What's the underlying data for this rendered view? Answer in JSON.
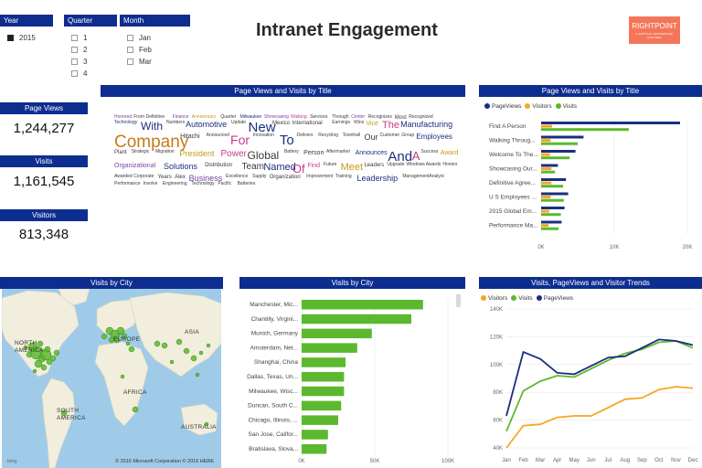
{
  "report": {
    "title": "Intranet Engagement",
    "logo_text": "RIGHTPOINT",
    "logo_sub": "A CRITICAL ENTERPRISE PARTNER"
  },
  "colors": {
    "header": "#0d2d8f",
    "pageviews": "#1a2e7c",
    "visitors": "#f5a623",
    "visits": "#5cb82e",
    "logo": "#f4765a"
  },
  "slicers": {
    "year": {
      "label": "Year",
      "items": [
        {
          "label": "2015",
          "checked": true
        }
      ]
    },
    "quarter": {
      "label": "Quarter",
      "items": [
        {
          "label": "1"
        },
        {
          "label": "2"
        },
        {
          "label": "3"
        },
        {
          "label": "4"
        }
      ]
    },
    "month": {
      "label": "Month",
      "items": [
        {
          "label": "Jan"
        },
        {
          "label": "Feb"
        },
        {
          "label": "Mar"
        }
      ]
    }
  },
  "kpis": {
    "page_views": {
      "label": "Page Views",
      "value": "1,244,277"
    },
    "visits": {
      "label": "Visits",
      "value": "1,161,545"
    },
    "visitors": {
      "label": "Visitors",
      "value": "813,348"
    }
  },
  "wordcloud": {
    "header": "Page Views and Visits by Title",
    "words": [
      {
        "t": "Honored",
        "s": 5,
        "c": "#7b3f9e"
      },
      {
        "t": "From",
        "s": 5,
        "c": "#3a3a3a"
      },
      {
        "t": "Definitive",
        "s": 5,
        "c": "#3a3a3a"
      },
      {
        "t": "Finance",
        "s": 5,
        "c": "#7b3f9e"
      },
      {
        "t": "Anniversary",
        "s": 5,
        "c": "#c79a1a"
      },
      {
        "t": "Quarter",
        "s": 5,
        "c": "#3a3a3a"
      },
      {
        "t": "Milwaukee",
        "s": 5,
        "c": "#1a2e7c"
      },
      {
        "t": "Showcasing",
        "s": 5,
        "c": "#7b3f9e"
      },
      {
        "t": "Walking",
        "s": 5,
        "c": "#c93a8a"
      },
      {
        "t": "Services",
        "s": 5,
        "c": "#3a3a3a"
      },
      {
        "t": "Through",
        "s": 5,
        "c": "#3a3a3a"
      },
      {
        "t": "Center",
        "s": 5,
        "c": "#7b3f9e"
      },
      {
        "t": "Recognizes",
        "s": 5,
        "c": "#3a3a3a"
      },
      {
        "t": "Most",
        "s": 6,
        "c": "#3a3a3a"
      },
      {
        "t": "Recognized",
        "s": 5,
        "c": "#3a3a3a"
      },
      {
        "t": "Technology",
        "s": 5,
        "c": "#1a2e7c"
      },
      {
        "t": "With",
        "s": 12,
        "c": "#1a2e7c"
      },
      {
        "t": "Numbers",
        "s": 5,
        "c": "#3a3a3a"
      },
      {
        "t": "Automotive",
        "s": 9,
        "c": "#1a2e7c"
      },
      {
        "t": "Update",
        "s": 5,
        "c": "#3a3a3a"
      },
      {
        "t": "New",
        "s": 15,
        "c": "#1a2e7c"
      },
      {
        "t": "Mexico",
        "s": 6,
        "c": "#3a3a3a"
      },
      {
        "t": "International",
        "s": 6,
        "c": "#3a3a3a"
      },
      {
        "t": "Earnings",
        "s": 5,
        "c": "#3a3a3a"
      },
      {
        "t": "Wins",
        "s": 5,
        "c": "#3a3a3a"
      },
      {
        "t": "Vice",
        "s": 7,
        "c": "#c79a1a"
      },
      {
        "t": "The",
        "s": 11,
        "c": "#c93a8a"
      },
      {
        "t": "Manufacturing",
        "s": 9,
        "c": "#1a2e7c"
      },
      {
        "t": "Company",
        "s": 19,
        "c": "#c77a1a"
      },
      {
        "t": "Hitachi",
        "s": 7,
        "c": "#3a3a3a"
      },
      {
        "t": "Announced",
        "s": 5,
        "c": "#3a3a3a"
      },
      {
        "t": "For",
        "s": 14,
        "c": "#c93a8a"
      },
      {
        "t": "Innovation",
        "s": 5,
        "c": "#3a3a3a"
      },
      {
        "t": "To",
        "s": 15,
        "c": "#1a2e7c"
      },
      {
        "t": "Delivers",
        "s": 5,
        "c": "#3a3a3a"
      },
      {
        "t": "Recycling",
        "s": 5,
        "c": "#3a3a3a"
      },
      {
        "t": "Townhall",
        "s": 5,
        "c": "#3a3a3a"
      },
      {
        "t": "Our",
        "s": 9,
        "c": "#3a3a3a"
      },
      {
        "t": "Customer",
        "s": 5,
        "c": "#3a3a3a"
      },
      {
        "t": "Group",
        "s": 5,
        "c": "#3a3a3a"
      },
      {
        "t": "Employees",
        "s": 8,
        "c": "#1a2e7c"
      },
      {
        "t": "Plant",
        "s": 6,
        "c": "#3a3a3a"
      },
      {
        "t": "Strategic",
        "s": 5,
        "c": "#3a3a3a"
      },
      {
        "t": "Migration",
        "s": 5,
        "c": "#3a3a3a"
      },
      {
        "t": "President",
        "s": 9,
        "c": "#c79a1a"
      },
      {
        "t": "Power",
        "s": 10,
        "c": "#c93a8a"
      },
      {
        "t": "Global",
        "s": 12,
        "c": "#3a3a3a"
      },
      {
        "t": "Battery",
        "s": 5,
        "c": "#3a3a3a"
      },
      {
        "t": "Person",
        "s": 7,
        "c": "#3a3a3a"
      },
      {
        "t": "Aftermarket",
        "s": 5,
        "c": "#3a3a3a"
      },
      {
        "t": "Announces",
        "s": 7,
        "c": "#1a2e7c"
      },
      {
        "t": "And",
        "s": 15,
        "c": "#1a2e7c"
      },
      {
        "t": "A",
        "s": 13,
        "c": "#c93a8a"
      },
      {
        "t": "Success",
        "s": 5,
        "c": "#3a3a3a"
      },
      {
        "t": "Award",
        "s": 7,
        "c": "#c79a1a"
      },
      {
        "t": "Organizational",
        "s": 7,
        "c": "#7b3f9e"
      },
      {
        "t": "Solutions",
        "s": 9,
        "c": "#1a2e7c"
      },
      {
        "t": "Distribution",
        "s": 6,
        "c": "#3a3a3a"
      },
      {
        "t": "Team",
        "s": 10,
        "c": "#3a3a3a"
      },
      {
        "t": "Named",
        "s": 11,
        "c": "#1a2e7c"
      },
      {
        "t": "Of",
        "s": 13,
        "c": "#c93a8a"
      },
      {
        "t": "Find",
        "s": 7,
        "c": "#c93a8a"
      },
      {
        "t": "Future",
        "s": 5,
        "c": "#3a3a3a"
      },
      {
        "t": "Meet",
        "s": 11,
        "c": "#c79a1a"
      },
      {
        "t": "Leaders",
        "s": 6,
        "c": "#3a3a3a"
      },
      {
        "t": "Upgrade",
        "s": 5,
        "c": "#3a3a3a"
      },
      {
        "t": "Windows",
        "s": 5,
        "c": "#3a3a3a"
      },
      {
        "t": "Awards",
        "s": 5,
        "c": "#3a3a3a"
      },
      {
        "t": "Honors",
        "s": 5,
        "c": "#3a3a3a"
      },
      {
        "t": "Awarded",
        "s": 5,
        "c": "#3a3a3a"
      },
      {
        "t": "Corporate",
        "s": 5,
        "c": "#3a3a3a"
      },
      {
        "t": "Years",
        "s": 6,
        "c": "#3a3a3a"
      },
      {
        "t": "Alex",
        "s": 6,
        "c": "#3a3a3a"
      },
      {
        "t": "Business",
        "s": 9,
        "c": "#7b3f9e"
      },
      {
        "t": "Excellence",
        "s": 5,
        "c": "#3a3a3a"
      },
      {
        "t": "Supply",
        "s": 5,
        "c": "#3a3a3a"
      },
      {
        "t": "Organization",
        "s": 6,
        "c": "#3a3a3a"
      },
      {
        "t": "Improvement",
        "s": 5,
        "c": "#3a3a3a"
      },
      {
        "t": "Training",
        "s": 5,
        "c": "#3a3a3a"
      },
      {
        "t": "Leadership",
        "s": 9,
        "c": "#1a2e7c"
      },
      {
        "t": "Management",
        "s": 5,
        "c": "#3a3a3a"
      },
      {
        "t": "Analyst",
        "s": 5,
        "c": "#3a3a3a"
      },
      {
        "t": "Performance",
        "s": 5,
        "c": "#3a3a3a"
      },
      {
        "t": "Involve",
        "s": 5,
        "c": "#3a3a3a"
      },
      {
        "t": "Engineering",
        "s": 5,
        "c": "#3a3a3a"
      },
      {
        "t": "Technology",
        "s": 5,
        "c": "#3a3a3a"
      },
      {
        "t": "Pacific",
        "s": 5,
        "c": "#3a3a3a"
      },
      {
        "t": "Batteries",
        "s": 5,
        "c": "#3a3a3a"
      }
    ]
  },
  "bar_pv": {
    "header": "Page Views and Visits by Title",
    "legend": [
      {
        "name": "PageViews",
        "color": "#1a2e7c"
      },
      {
        "name": "Visitors",
        "color": "#f5a623"
      },
      {
        "name": "Visits",
        "color": "#5cb82e"
      }
    ]
  },
  "map": {
    "header": "Visits by City",
    "labels": [
      "NORTH AMERICA",
      "EUROPE",
      "ASIA",
      "AFRICA",
      "SOUTH AMERICA",
      "AUSTRALIA"
    ],
    "credit": "© 2016 Microsoft Corporation   © 2016 HERE",
    "bing": "bing"
  },
  "bar_city": {
    "header": "Visits by City"
  },
  "trend": {
    "header": "Visits, PageViews and Visitor Trends",
    "legend": [
      {
        "name": "Visitors",
        "color": "#f5a623"
      },
      {
        "name": "Visits",
        "color": "#5cb82e"
      },
      {
        "name": "PageViews",
        "color": "#1a2e7c"
      }
    ]
  },
  "chart_data": [
    {
      "type": "bar",
      "orientation": "horizontal",
      "title": "Page Views and Visits by Title",
      "categories": [
        "Find A Person",
        "Walking Throug...",
        "Welcome To The...",
        "Showcasing Our...",
        "Definitive Agree...",
        "U S Employees ...",
        "2015 Global Em...",
        "Performance Ma..."
      ],
      "series": [
        {
          "name": "PageViews",
          "values": [
            19000,
            5800,
            4700,
            2300,
            3400,
            3700,
            3200,
            2800
          ]
        },
        {
          "name": "Visitors",
          "values": [
            1500,
            1300,
            1200,
            1400,
            1400,
            1300,
            1100,
            1000
          ]
        },
        {
          "name": "Visits",
          "values": [
            12000,
            5000,
            3900,
            1900,
            3000,
            3100,
            2700,
            2400
          ]
        }
      ],
      "xticks": [
        "0K",
        "10K",
        "20K"
      ],
      "xlim": [
        0,
        20000
      ],
      "legend": "top-left"
    },
    {
      "type": "bar",
      "orientation": "horizontal",
      "title": "Visits by City",
      "categories": [
        "Manchester, Mic...",
        "Chantilly, Virgini...",
        "Munich, Germany",
        "Amsterdam, Net...",
        "Shanghai, China",
        "Dallas, Texas, Un...",
        "Milwaukee, Wisc...",
        "Duncan, South C...",
        "Chicago, Illinois, ...",
        "San Jose, Califor...",
        "Bratislava, Slova..."
      ],
      "values": [
        83000,
        75000,
        48000,
        38000,
        30000,
        29000,
        29000,
        27000,
        25000,
        18000,
        17000
      ],
      "xticks": [
        "0K",
        "50K",
        "100K"
      ],
      "xlim": [
        0,
        100000
      ]
    },
    {
      "type": "line",
      "title": "Visits, PageViews and Visitor Trends",
      "x": [
        "Jan",
        "Feb",
        "Mar",
        "Apr",
        "May",
        "Jun",
        "Jul",
        "Aug",
        "Sep",
        "Oct",
        "Nov",
        "Dec"
      ],
      "series": [
        {
          "name": "Visitors",
          "values": [
            40000,
            56000,
            57000,
            62000,
            63000,
            63000,
            69000,
            75000,
            76000,
            82000,
            84000,
            83000
          ]
        },
        {
          "name": "Visits",
          "values": [
            52000,
            81000,
            88000,
            92000,
            91000,
            97000,
            103000,
            108000,
            111000,
            116000,
            117000,
            112000
          ]
        },
        {
          "name": "PageViews",
          "values": [
            63000,
            109000,
            104000,
            94000,
            93000,
            99000,
            105000,
            106000,
            112000,
            118000,
            117000,
            114000
          ]
        }
      ],
      "yticks": [
        "40K",
        "60K",
        "80K",
        "100K",
        "120K",
        "140K"
      ],
      "ylim": [
        40000,
        140000
      ],
      "legend": "top-left"
    }
  ]
}
